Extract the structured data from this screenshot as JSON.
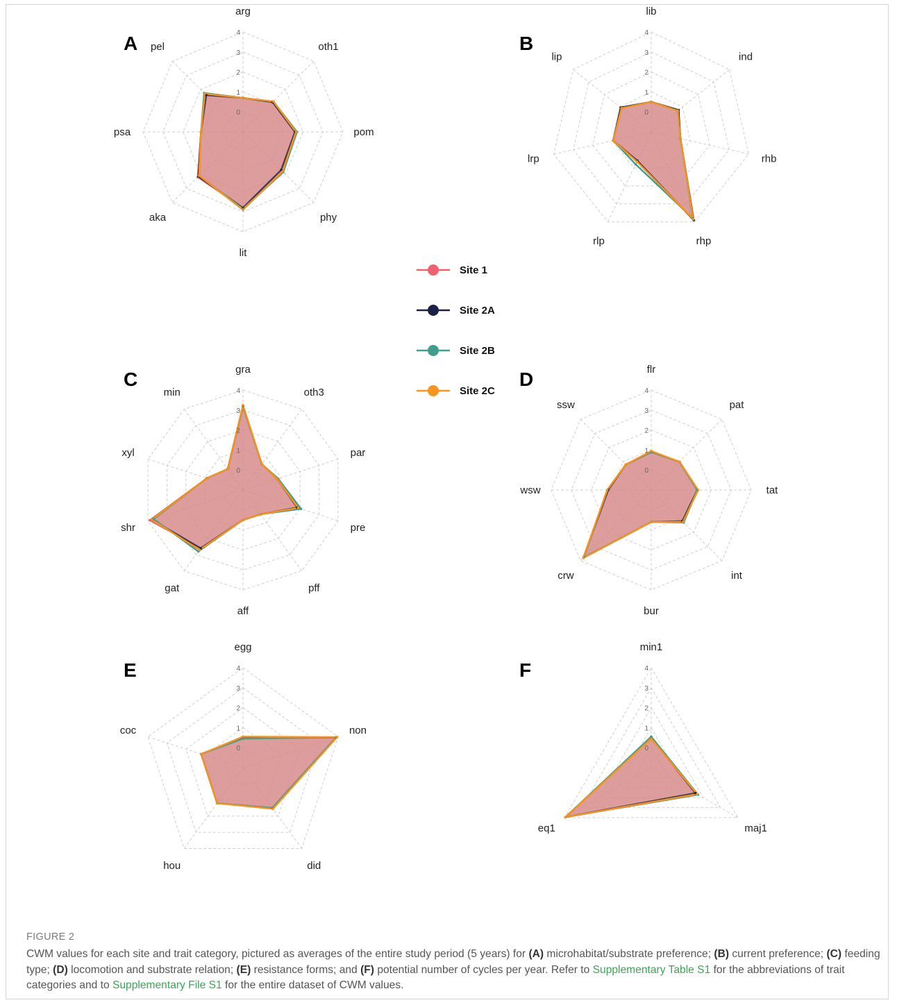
{
  "figure": {
    "label": "FIGURE 2",
    "caption_parts": [
      {
        "t": "CWM values for each site and trait category, pictured as averages of the entire study period (5 years) for "
      },
      {
        "t": "(A)",
        "b": 1
      },
      {
        "t": " microhabitat/substrate preference; "
      },
      {
        "t": "(B)",
        "b": 1
      },
      {
        "t": " current preference; "
      },
      {
        "t": "(C)",
        "b": 1
      },
      {
        "t": " feeding type; "
      },
      {
        "t": "(D)",
        "b": 1
      },
      {
        "t": " locomotion and substrate relation; "
      },
      {
        "t": "(E)",
        "b": 1
      },
      {
        "t": " resistance forms; and "
      },
      {
        "t": "(F)",
        "b": 1
      },
      {
        "t": " potential number of cycles per year. Refer to "
      },
      {
        "t": "Supplementary Table S1",
        "link": 1
      },
      {
        "t": " for the abbreviations of trait categories and to "
      },
      {
        "t": "Supplementary File S1",
        "link": 1
      },
      {
        "t": " for the entire dataset of CWM values."
      }
    ]
  },
  "legend": [
    {
      "name": "Site 1",
      "color": "#f0606e"
    },
    {
      "name": "Site 2A",
      "color": "#1a2144"
    },
    {
      "name": "Site 2B",
      "color": "#3f9e8e"
    },
    {
      "name": "Site 2C",
      "color": "#f7941d"
    }
  ],
  "fill_color": "#d88a8a",
  "chart_data": [
    {
      "type": "radar",
      "panel": "A",
      "rmax": 4,
      "ticks": [
        "0",
        "1",
        "2",
        "3",
        "4"
      ],
      "grid": true,
      "axes": [
        "arg",
        "oth1",
        "pom",
        "phy",
        "lit",
        "aka",
        "psa",
        "pel"
      ],
      "series": [
        {
          "name": "Site 1",
          "values": [
            0.7,
            1.1,
            1.6,
            1.7,
            2.8,
            2.2,
            1.1,
            1.6
          ]
        },
        {
          "name": "Site 2A",
          "values": [
            0.7,
            1.1,
            1.6,
            1.7,
            2.8,
            2.15,
            1.1,
            1.6
          ]
        },
        {
          "name": "Site 2B",
          "values": [
            0.7,
            1.15,
            1.7,
            1.85,
            2.85,
            2.1,
            1.1,
            1.75
          ]
        },
        {
          "name": "Site 2C",
          "values": [
            0.7,
            1.15,
            1.65,
            1.8,
            2.9,
            2.1,
            1.1,
            1.7
          ]
        }
      ]
    },
    {
      "type": "radar",
      "panel": "B",
      "rmax": 4,
      "ticks": [
        "0",
        "1",
        "2",
        "3",
        "4"
      ],
      "grid": true,
      "axes": [
        "lib",
        "ind",
        "rhb",
        "rhp",
        "rlp",
        "lrp",
        "lip"
      ],
      "series": [
        {
          "name": "Site 1",
          "values": [
            0.5,
            0.7,
            0.5,
            3.9,
            0.6,
            0.95,
            0.95
          ]
        },
        {
          "name": "Site 2A",
          "values": [
            0.5,
            0.75,
            0.5,
            3.9,
            0.6,
            0.95,
            0.95
          ]
        },
        {
          "name": "Site 2B",
          "values": [
            0.5,
            0.7,
            0.5,
            3.8,
            0.8,
            0.95,
            0.9
          ]
        },
        {
          "name": "Site 2C",
          "values": [
            0.5,
            0.7,
            0.5,
            3.85,
            0.65,
            0.95,
            0.9
          ]
        }
      ]
    },
    {
      "type": "radar",
      "panel": "C",
      "rmax": 4,
      "ticks": [
        "0",
        "1",
        "2",
        "3",
        "4"
      ],
      "grid": true,
      "axes": [
        "gra",
        "oth3",
        "par",
        "pre",
        "pff",
        "aff",
        "gat",
        "shr",
        "xyl",
        "min"
      ],
      "series": [
        {
          "name": "Site 1",
          "values": [
            3.2,
            0.6,
            0.8,
            1.85,
            0.5,
            0.5,
            2.6,
            3.9,
            0.9,
            0.3
          ]
        },
        {
          "name": "Site 2A",
          "values": [
            3.2,
            0.6,
            0.8,
            1.85,
            0.5,
            0.5,
            2.6,
            3.8,
            0.9,
            0.3
          ]
        },
        {
          "name": "Site 2B",
          "values": [
            3.2,
            0.6,
            0.85,
            2.05,
            0.5,
            0.5,
            2.8,
            3.7,
            0.9,
            0.3
          ]
        },
        {
          "name": "Site 2C",
          "values": [
            3.25,
            0.6,
            0.8,
            1.9,
            0.5,
            0.5,
            2.7,
            3.8,
            0.9,
            0.3
          ]
        }
      ]
    },
    {
      "type": "radar",
      "panel": "D",
      "rmax": 4,
      "ticks": [
        "0",
        "1",
        "2",
        "3",
        "4"
      ],
      "grid": true,
      "axes": [
        "flr",
        "pat",
        "tat",
        "int",
        "bur",
        "crw",
        "wsw",
        "ssw"
      ],
      "series": [
        {
          "name": "Site 1",
          "values": [
            0.9,
            1.0,
            1.3,
            1.2,
            0.6,
            3.8,
            1.2,
            0.8
          ]
        },
        {
          "name": "Site 2A",
          "values": [
            0.9,
            1.0,
            1.3,
            1.2,
            0.6,
            3.8,
            1.15,
            0.8
          ]
        },
        {
          "name": "Site 2B",
          "values": [
            0.9,
            1.0,
            1.3,
            1.3,
            0.6,
            3.75,
            1.2,
            0.8
          ]
        },
        {
          "name": "Site 2C",
          "values": [
            0.95,
            1.0,
            1.35,
            1.25,
            0.6,
            3.8,
            1.2,
            0.8
          ]
        }
      ]
    },
    {
      "type": "radar",
      "panel": "E",
      "rmax": 4,
      "ticks": [
        "0",
        "1",
        "2",
        "3",
        "4"
      ],
      "grid": true,
      "axes": [
        "egg",
        "non",
        "did",
        "hou",
        "coc"
      ],
      "series": [
        {
          "name": "Site 1",
          "values": [
            0.5,
            3.9,
            1.5,
            1.2,
            1.2
          ]
        },
        {
          "name": "Site 2A",
          "values": [
            0.5,
            3.9,
            1.5,
            1.2,
            1.2
          ]
        },
        {
          "name": "Site 2B",
          "values": [
            0.45,
            3.9,
            1.5,
            1.2,
            1.2
          ]
        },
        {
          "name": "Site 2C",
          "values": [
            0.55,
            3.95,
            1.55,
            1.2,
            1.2
          ]
        }
      ]
    },
    {
      "type": "radar",
      "panel": "F",
      "rmax": 4,
      "ticks": [
        "0",
        "1",
        "2",
        "3",
        "4"
      ],
      "grid": true,
      "axes": [
        "min1",
        "maj1",
        "eq1"
      ],
      "series": [
        {
          "name": "Site 1",
          "values": [
            0.5,
            1.6,
            3.95
          ]
        },
        {
          "name": "Site 2A",
          "values": [
            0.5,
            1.55,
            3.95
          ]
        },
        {
          "name": "Site 2B",
          "values": [
            0.55,
            1.7,
            3.95
          ]
        },
        {
          "name": "Site 2C",
          "values": [
            0.45,
            1.65,
            3.95
          ]
        }
      ]
    }
  ]
}
